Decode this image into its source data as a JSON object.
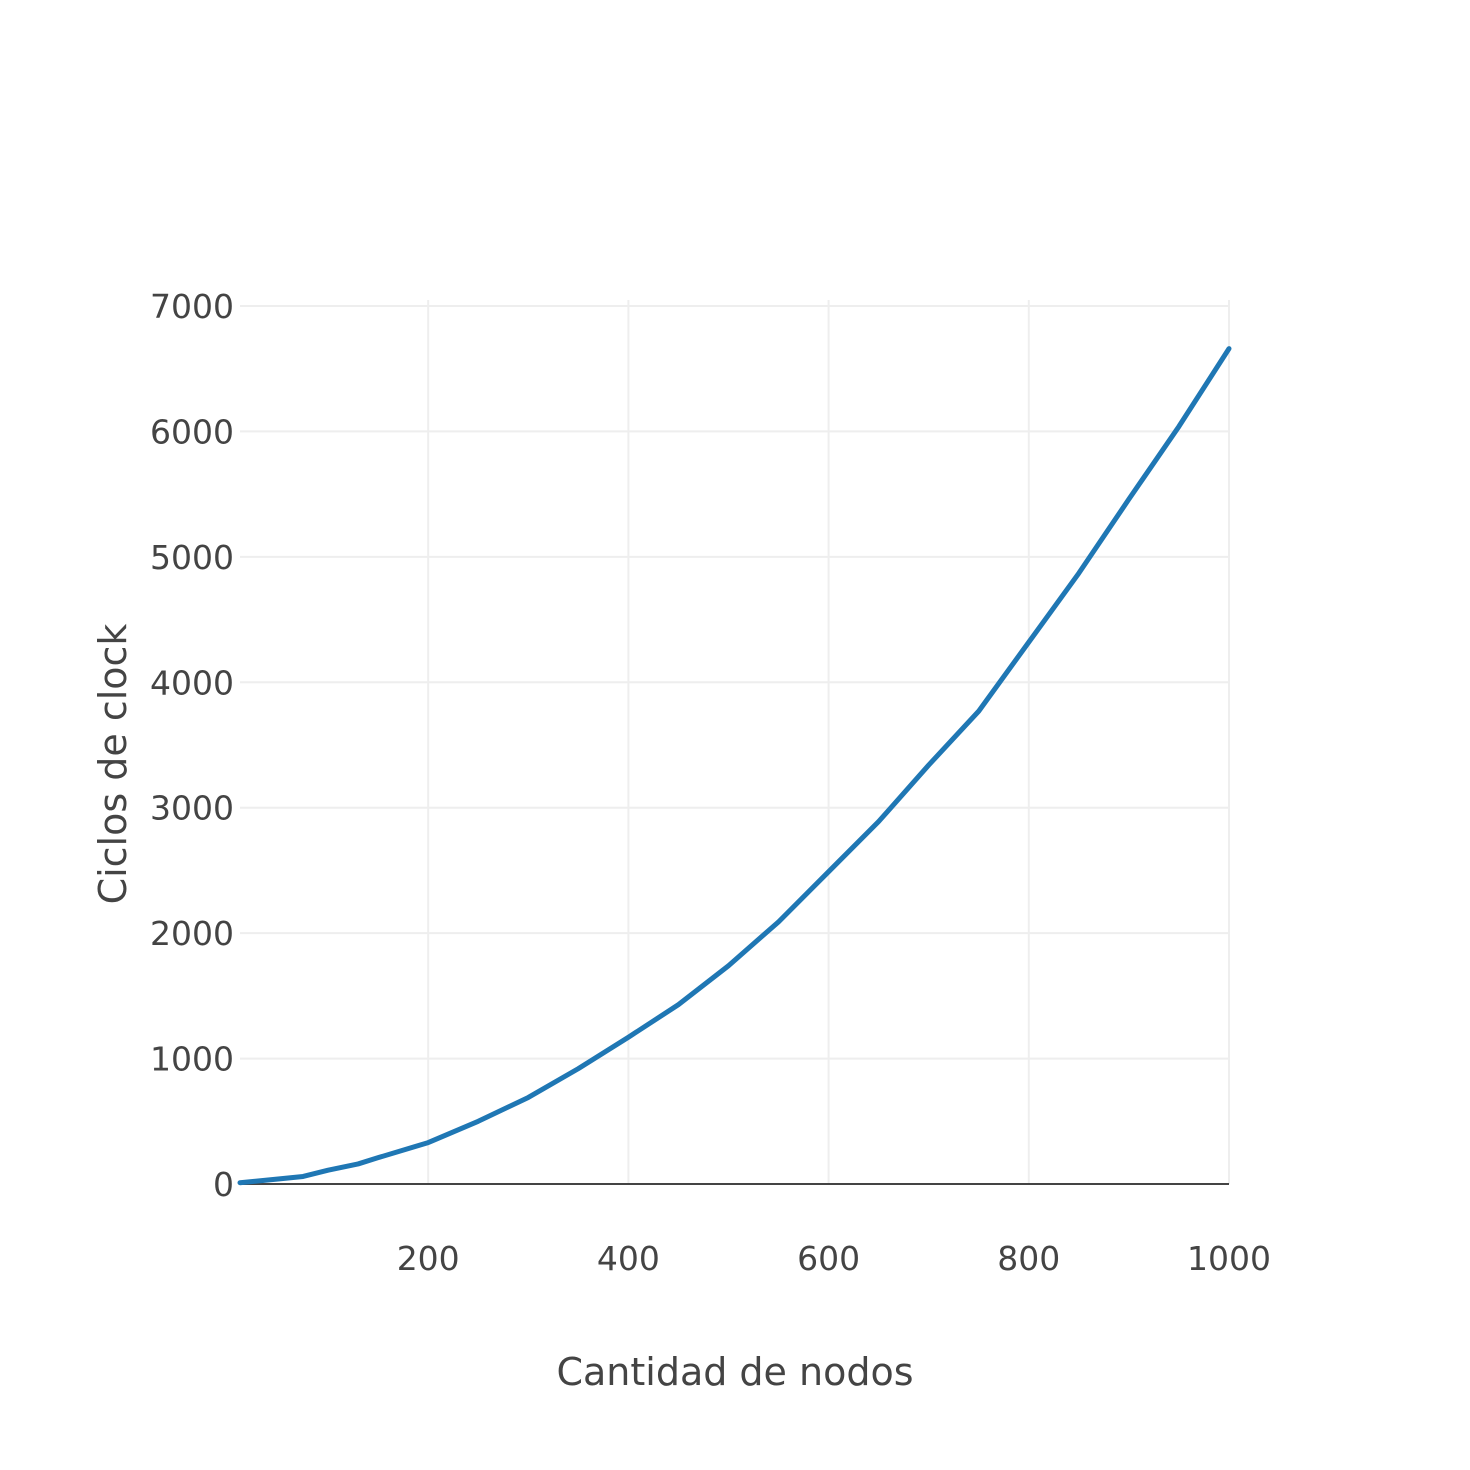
{
  "chart_data": {
    "type": "line",
    "title": "",
    "xlabel": "Cantidad de nodos",
    "ylabel": "Ciclos de clock",
    "xlim": [
      12,
      1000
    ],
    "ylim": [
      0,
      7000
    ],
    "x_ticks": [
      200,
      400,
      600,
      800,
      1000
    ],
    "y_ticks": [
      0,
      1000,
      2000,
      3000,
      4000,
      5000,
      6000,
      7000
    ],
    "grid": true,
    "legend": "none",
    "series": [
      {
        "color": "#1f77b4",
        "x": [
          12,
          50,
          75,
          100,
          130,
          150,
          200,
          250,
          300,
          350,
          400,
          450,
          500,
          550,
          600,
          650,
          700,
          750,
          800,
          850,
          900,
          950,
          1000
        ],
        "y": [
          10,
          40,
          60,
          110,
          160,
          210,
          330,
          500,
          690,
          920,
          1170,
          1430,
          1740,
          2090,
          2490,
          2890,
          3340,
          3770,
          4320,
          4870,
          5460,
          6040,
          6660
        ]
      }
    ]
  }
}
